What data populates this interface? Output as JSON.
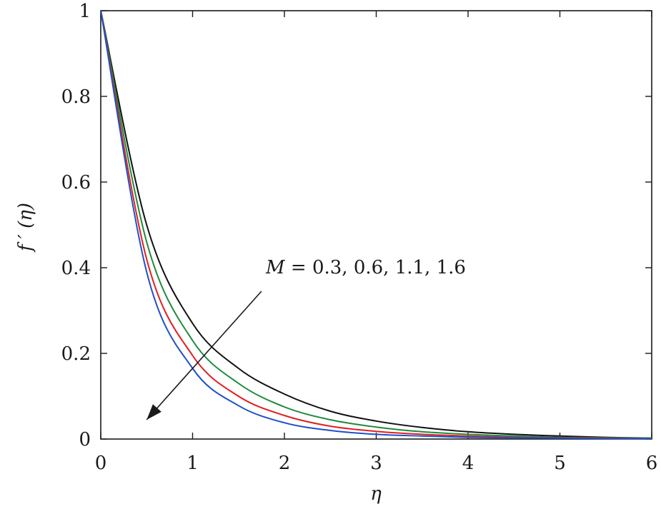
{
  "chart_data": {
    "type": "line",
    "title": "",
    "xlabel": "η",
    "ylabel": "f ′ (η)",
    "xlim": [
      0,
      6
    ],
    "ylim": [
      0,
      1
    ],
    "x_ticks": [
      "0",
      "1",
      "2",
      "3",
      "4",
      "5",
      "6"
    ],
    "y_ticks": [
      "0",
      "0.2",
      "0.4",
      "0.6",
      "0.8",
      "1"
    ],
    "grid": false,
    "legend": "none",
    "annotation": {
      "variable": "M",
      "text": " = 0.3, 0.6, 1.1, 1.6",
      "arrow_from": [
        1.75,
        0.345
      ],
      "arrow_to": [
        0.5,
        0.045
      ]
    },
    "x": [
      0,
      0.5,
      1,
      1.5,
      2,
      2.5,
      3,
      3.5,
      4,
      4.5,
      5,
      5.5,
      6
    ],
    "series": [
      {
        "color": "#111111",
        "values": [
          1.0,
          0.5,
          0.27,
          0.165,
          0.105,
          0.065,
          0.042,
          0.027,
          0.017,
          0.011,
          0.007,
          0.004,
          0.002
        ]
      },
      {
        "color": "#1e8a3c",
        "values": [
          1.0,
          0.46,
          0.23,
          0.13,
          0.075,
          0.045,
          0.028,
          0.017,
          0.011,
          0.007,
          0.004,
          0.003,
          0.002
        ]
      },
      {
        "color": "#e02020",
        "values": [
          1.0,
          0.42,
          0.195,
          0.1,
          0.055,
          0.03,
          0.018,
          0.011,
          0.007,
          0.004,
          0.003,
          0.002,
          0.001
        ]
      },
      {
        "color": "#2050c8",
        "values": [
          1.0,
          0.39,
          0.165,
          0.078,
          0.038,
          0.02,
          0.011,
          0.007,
          0.004,
          0.003,
          0.002,
          0.001,
          0.001
        ]
      }
    ]
  }
}
